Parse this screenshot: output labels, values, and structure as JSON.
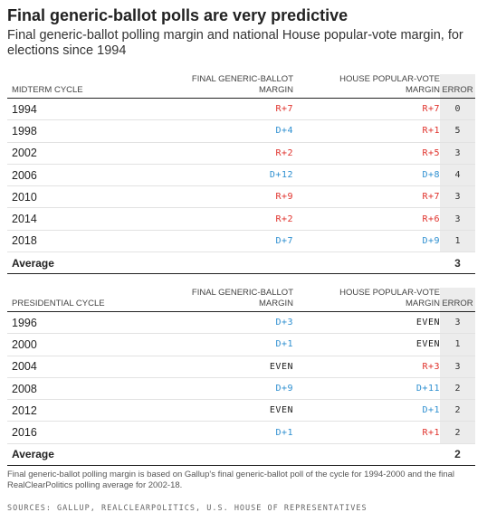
{
  "title": "Final generic-ballot polls are very predictive",
  "subtitle": "Final generic-ballot polling margin and national House popular-vote margin, for elections since 1994",
  "colors": {
    "republican": "#e0312b",
    "democrat": "#2d8fd0",
    "even": "#222222",
    "error_column_bg": "#ececec"
  },
  "midterm": {
    "header_cycle": "MIDTERM CYCLE",
    "header_ballot_1": "FINAL GENERIC-BALLOT",
    "header_ballot_2": "MARGIN",
    "header_vote_1": "HOUSE POPULAR-VOTE",
    "header_vote_2": "MARGIN",
    "header_error": "ERROR",
    "rows": [
      {
        "year": "1994",
        "ballot": "R+7",
        "ballot_party": "R",
        "vote": "R+7",
        "vote_party": "R",
        "error": "0"
      },
      {
        "year": "1998",
        "ballot": "D+4",
        "ballot_party": "D",
        "vote": "R+1",
        "vote_party": "R",
        "error": "5"
      },
      {
        "year": "2002",
        "ballot": "R+2",
        "ballot_party": "R",
        "vote": "R+5",
        "vote_party": "R",
        "error": "3"
      },
      {
        "year": "2006",
        "ballot": "D+12",
        "ballot_party": "D",
        "vote": "D+8",
        "vote_party": "D",
        "error": "4"
      },
      {
        "year": "2010",
        "ballot": "R+9",
        "ballot_party": "R",
        "vote": "R+7",
        "vote_party": "R",
        "error": "3"
      },
      {
        "year": "2014",
        "ballot": "R+2",
        "ballot_party": "R",
        "vote": "R+6",
        "vote_party": "R",
        "error": "3"
      },
      {
        "year": "2018",
        "ballot": "D+7",
        "ballot_party": "D",
        "vote": "D+9",
        "vote_party": "D",
        "error": "1"
      }
    ],
    "average_label": "Average",
    "average_value": "3"
  },
  "presidential": {
    "header_cycle": "PRESIDENTIAL CYCLE",
    "header_ballot_1": "FINAL GENERIC-BALLOT",
    "header_ballot_2": "MARGIN",
    "header_vote_1": "HOUSE POPULAR-VOTE",
    "header_vote_2": "MARGIN",
    "header_error": "ERROR",
    "rows": [
      {
        "year": "1996",
        "ballot": "D+3",
        "ballot_party": "D",
        "vote": "EVEN",
        "vote_party": "E",
        "error": "3"
      },
      {
        "year": "2000",
        "ballot": "D+1",
        "ballot_party": "D",
        "vote": "EVEN",
        "vote_party": "E",
        "error": "1"
      },
      {
        "year": "2004",
        "ballot": "EVEN",
        "ballot_party": "E",
        "vote": "R+3",
        "vote_party": "R",
        "error": "3"
      },
      {
        "year": "2008",
        "ballot": "D+9",
        "ballot_party": "D",
        "vote": "D+11",
        "vote_party": "D",
        "error": "2"
      },
      {
        "year": "2012",
        "ballot": "EVEN",
        "ballot_party": "E",
        "vote": "D+1",
        "vote_party": "D",
        "error": "2"
      },
      {
        "year": "2016",
        "ballot": "D+1",
        "ballot_party": "D",
        "vote": "R+1",
        "vote_party": "R",
        "error": "2"
      }
    ],
    "average_label": "Average",
    "average_value": "2"
  },
  "note": "Final generic-ballot polling margin is based on Gallup's final generic-ballot poll of the cycle for 1994-2000 and the final RealClearPolitics polling average for 2002-18.",
  "source": "SOURCES: GALLUP, REALCLEARPOLITICS, U.S. HOUSE OF REPRESENTATIVES"
}
